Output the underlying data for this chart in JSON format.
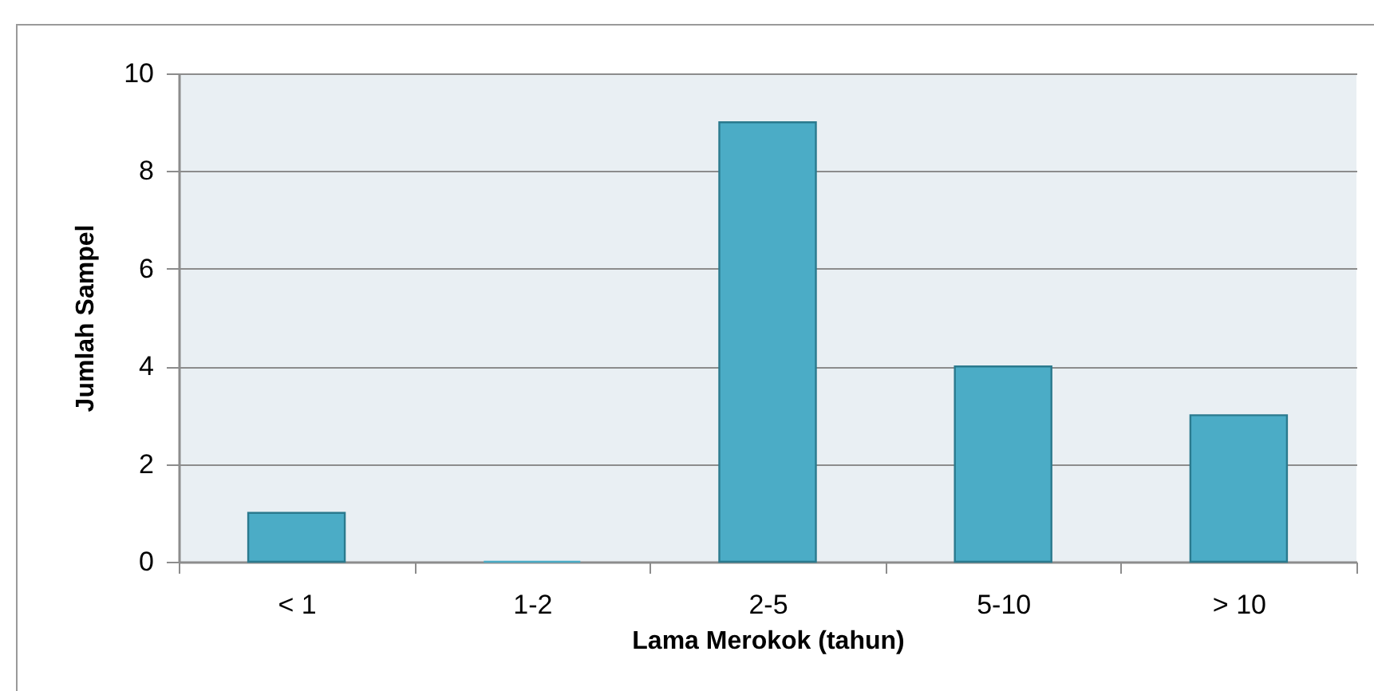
{
  "chart_data": {
    "type": "bar",
    "xlabel": "Lama Merokok (tahun)",
    "ylabel": "Jumlah Sampel",
    "categories": [
      "< 1",
      "1-2",
      "2-5",
      "5-10",
      "> 10"
    ],
    "values": [
      1,
      0,
      9,
      4,
      3
    ],
    "color": "#4bacc6",
    "ylim": [
      0,
      10
    ],
    "yticks": [
      0,
      2,
      4,
      6,
      8,
      10
    ],
    "grid": "y"
  }
}
